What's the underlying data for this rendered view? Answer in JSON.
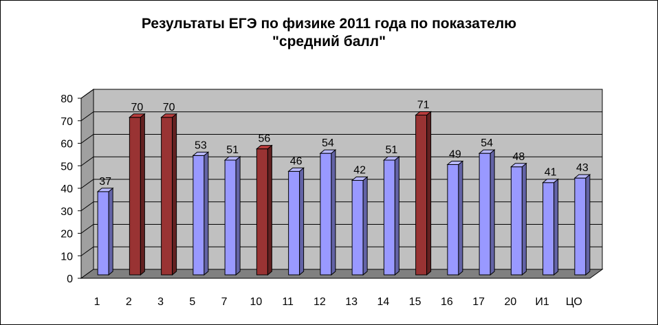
{
  "chart_data": {
    "type": "bar",
    "title_line1": "Результаты  ЕГЭ по физике 2011 года по показателю",
    "title_line2": "\"средний балл\"",
    "categories": [
      "1",
      "2",
      "3",
      "5",
      "7",
      "10",
      "11",
      "12",
      "13",
      "14",
      "15",
      "16",
      "17",
      "20",
      "И1",
      "ЦО"
    ],
    "values": [
      37,
      70,
      70,
      53,
      51,
      56,
      46,
      54,
      42,
      51,
      71,
      49,
      54,
      48,
      41,
      43
    ],
    "highlighted": [
      false,
      true,
      true,
      false,
      false,
      true,
      false,
      false,
      false,
      false,
      true,
      false,
      false,
      false,
      false,
      false
    ],
    "ylim": [
      0,
      80
    ],
    "yticks": [
      "0",
      "10",
      "20",
      "30",
      "40",
      "50",
      "60",
      "70",
      "80"
    ],
    "grid": true,
    "style": "3d-column",
    "colors": {
      "normal_bar": "#9999ff",
      "highlight_bar": "#993333",
      "wall": "#c0c0c0",
      "floor": "#808080"
    }
  }
}
